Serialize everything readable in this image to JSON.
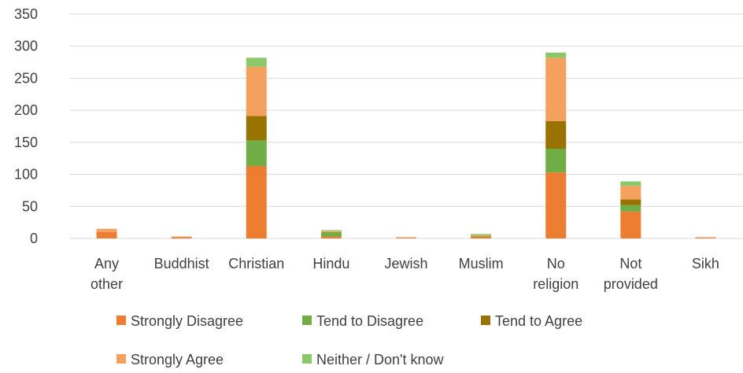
{
  "chart_data": {
    "type": "bar",
    "stacked": true,
    "title": "",
    "xlabel": "",
    "ylabel": "",
    "ylim": [
      0,
      350
    ],
    "yticks": [
      0,
      50,
      100,
      150,
      200,
      250,
      300,
      350
    ],
    "grid": true,
    "legend_position": "bottom",
    "categories": [
      "Any other",
      "Buddhist",
      "Christian",
      "Hindu",
      "Jewish",
      "Muslim",
      "No religion",
      "Not provided",
      "Sikh"
    ],
    "series": [
      {
        "name": "Strongly Disagree",
        "color": "#ED7D31",
        "values": [
          10,
          2,
          113,
          3,
          1,
          3,
          103,
          42,
          1
        ]
      },
      {
        "name": "Tend to Disagree",
        "color": "#70AD47",
        "values": [
          0,
          0,
          40,
          7,
          0,
          1,
          37,
          10,
          0
        ]
      },
      {
        "name": "Tend to Agree",
        "color": "#997300",
        "values": [
          0,
          0,
          38,
          0,
          0,
          0,
          43,
          9,
          0
        ]
      },
      {
        "name": "Strongly Agree",
        "color": "#F4A05E",
        "values": [
          5,
          1,
          77,
          2,
          1,
          1,
          99,
          21,
          1
        ]
      },
      {
        "name": "Neither / Don't know",
        "color": "#8BC86A",
        "values": [
          0,
          0,
          14,
          1,
          0,
          2,
          8,
          7,
          0
        ]
      }
    ]
  }
}
